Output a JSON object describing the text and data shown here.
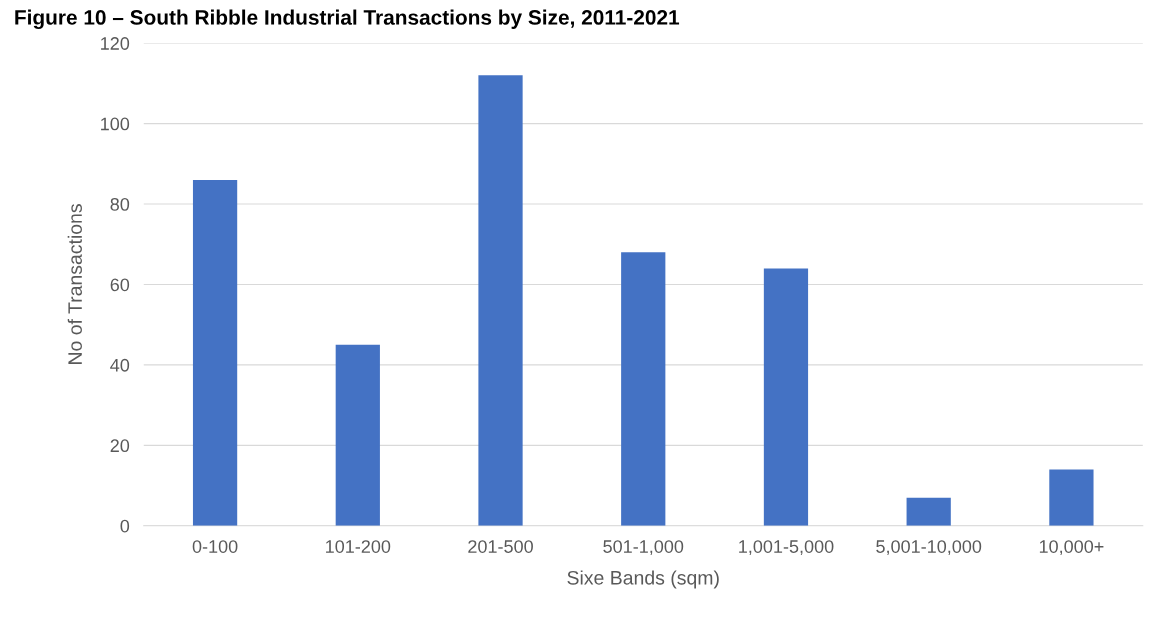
{
  "chart_data": {
    "type": "bar",
    "title": "Figure 10 – South Ribble Industrial Transactions by Size, 2011-2021",
    "xlabel": "Sixe Bands (sqm)",
    "ylabel": "No of Transactions",
    "categories": [
      "0-100",
      "101-200",
      "201-500",
      "501-1,000",
      "1,001-5,000",
      "5,001-10,000",
      "10,000+"
    ],
    "values": [
      86,
      45,
      112,
      68,
      64,
      7,
      14
    ],
    "color": "#4472c4",
    "ylim": [
      0,
      120
    ],
    "yticks": [
      0,
      20,
      40,
      60,
      80,
      100,
      120
    ],
    "grid": "y"
  }
}
